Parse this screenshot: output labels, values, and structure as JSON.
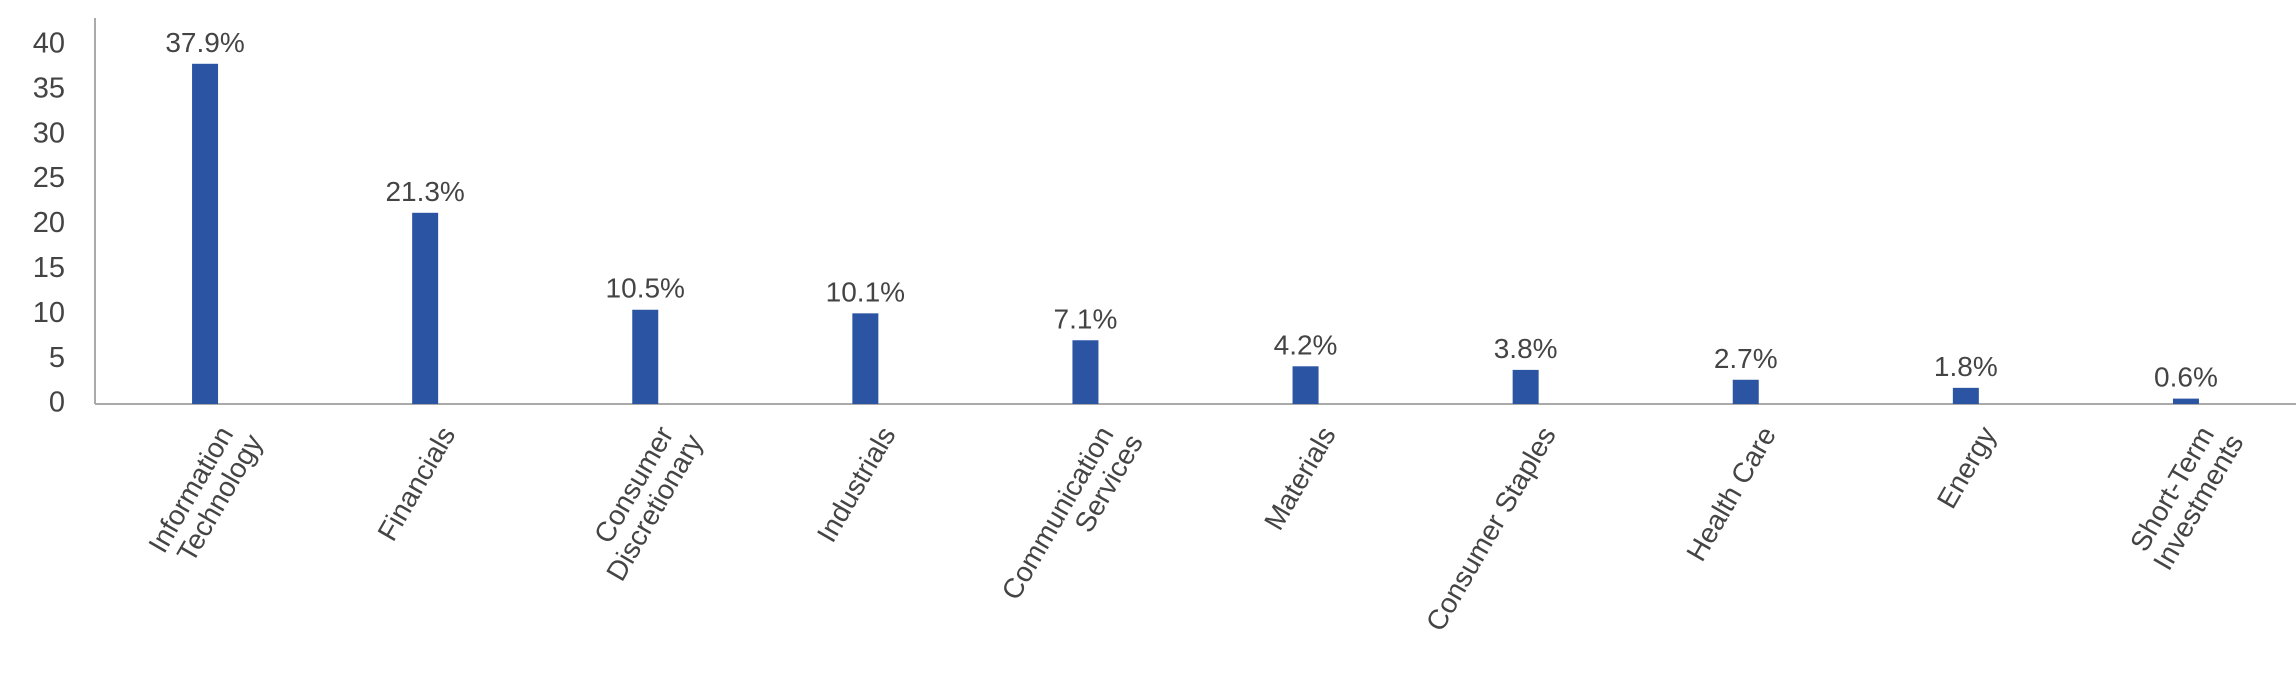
{
  "chart_data": {
    "type": "bar",
    "categories": [
      "Information Technology",
      "Financials",
      "Consumer Discretionary",
      "Industrials",
      "Communication Services",
      "Materials",
      "Consumer Staples",
      "Health Care",
      "Energy",
      "Short-Term Investments"
    ],
    "values": [
      37.9,
      21.3,
      10.5,
      10.1,
      7.1,
      4.2,
      3.8,
      2.7,
      1.8,
      0.6
    ],
    "value_labels": [
      "37.9%",
      "21.3%",
      "10.5%",
      "10.1%",
      "7.1%",
      "4.2%",
      "3.8%",
      "2.7%",
      "1.8%",
      "0.6%"
    ],
    "color": "#2b54a3",
    "ylim": [
      0,
      43
    ],
    "yticks": [
      0,
      5,
      10,
      15,
      20,
      25,
      30,
      35,
      40
    ]
  }
}
